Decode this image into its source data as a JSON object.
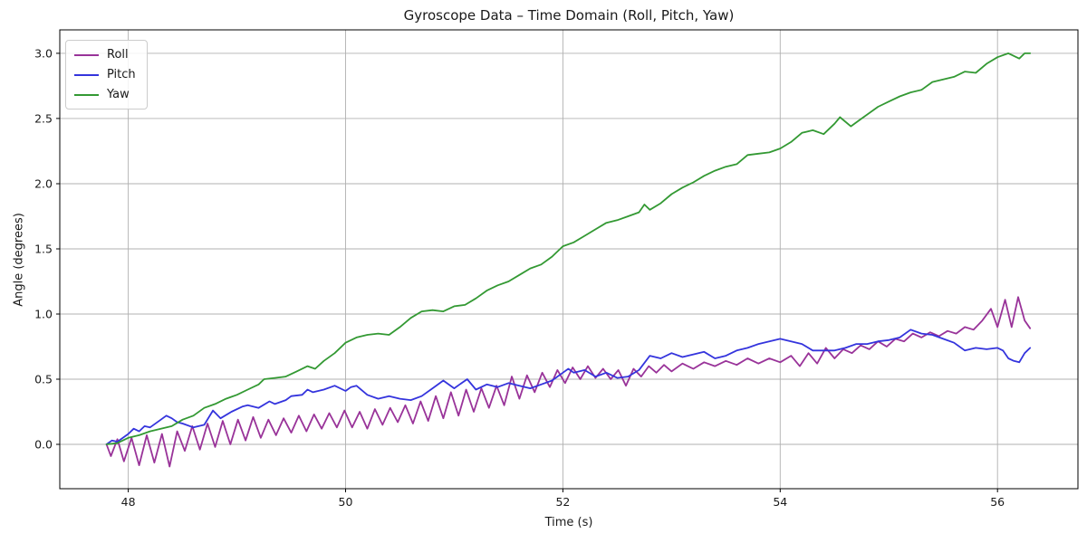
{
  "figure": {
    "title": "Gyroscope Data – Time Domain (Roll, Pitch, Yaw)",
    "xlabel": "Time (s)",
    "ylabel": "Angle (degrees)",
    "background_color": "#ffffff",
    "grid_color": "#b0b0b0",
    "spine_color": "#000000",
    "text_color": "#1a1a1a"
  },
  "legend": {
    "position": "upper-left",
    "items": [
      {
        "label": "Roll",
        "color": "#993399"
      },
      {
        "label": "Pitch",
        "color": "#3434dd"
      },
      {
        "label": "Yaw",
        "color": "#339933"
      }
    ]
  },
  "chart_data": {
    "type": "line",
    "title": "Gyroscope Data – Time Domain (Roll, Pitch, Yaw)",
    "xlabel": "Time (s)",
    "ylabel": "Angle (degrees)",
    "grid": true,
    "legend_position": "upper-left",
    "xlim": [
      47.37,
      56.74
    ],
    "ylim": [
      -0.34,
      3.18
    ],
    "xticks": [
      48,
      50,
      52,
      54,
      56
    ],
    "xtick_labels": [
      "48",
      "50",
      "52",
      "54",
      "56"
    ],
    "yticks": [
      0.0,
      0.5,
      1.0,
      1.5,
      2.0,
      2.5,
      3.0
    ],
    "ytick_labels": [
      "0.0",
      "0.5",
      "1.0",
      "1.5",
      "2.0",
      "2.5",
      "3.0"
    ],
    "series": [
      {
        "name": "Roll",
        "color": "#993399",
        "points": [
          [
            47.8,
            0.0
          ],
          [
            47.84,
            -0.09
          ],
          [
            47.9,
            0.04
          ],
          [
            47.96,
            -0.13
          ],
          [
            48.03,
            0.05
          ],
          [
            48.1,
            -0.16
          ],
          [
            48.17,
            0.07
          ],
          [
            48.24,
            -0.14
          ],
          [
            48.31,
            0.08
          ],
          [
            48.38,
            -0.17
          ],
          [
            48.45,
            0.1
          ],
          [
            48.52,
            -0.05
          ],
          [
            48.59,
            0.14
          ],
          [
            48.66,
            -0.04
          ],
          [
            48.73,
            0.16
          ],
          [
            48.8,
            -0.02
          ],
          [
            48.87,
            0.18
          ],
          [
            48.94,
            0.0
          ],
          [
            49.01,
            0.19
          ],
          [
            49.08,
            0.03
          ],
          [
            49.15,
            0.21
          ],
          [
            49.22,
            0.05
          ],
          [
            49.29,
            0.19
          ],
          [
            49.36,
            0.07
          ],
          [
            49.43,
            0.2
          ],
          [
            49.5,
            0.09
          ],
          [
            49.57,
            0.22
          ],
          [
            49.64,
            0.1
          ],
          [
            49.71,
            0.23
          ],
          [
            49.78,
            0.12
          ],
          [
            49.85,
            0.24
          ],
          [
            49.92,
            0.13
          ],
          [
            49.99,
            0.26
          ],
          [
            50.06,
            0.13
          ],
          [
            50.13,
            0.25
          ],
          [
            50.2,
            0.12
          ],
          [
            50.27,
            0.27
          ],
          [
            50.34,
            0.15
          ],
          [
            50.41,
            0.28
          ],
          [
            50.48,
            0.17
          ],
          [
            50.55,
            0.3
          ],
          [
            50.62,
            0.16
          ],
          [
            50.69,
            0.33
          ],
          [
            50.76,
            0.18
          ],
          [
            50.83,
            0.37
          ],
          [
            50.9,
            0.2
          ],
          [
            50.97,
            0.4
          ],
          [
            51.04,
            0.22
          ],
          [
            51.11,
            0.42
          ],
          [
            51.18,
            0.25
          ],
          [
            51.25,
            0.43
          ],
          [
            51.32,
            0.28
          ],
          [
            51.39,
            0.45
          ],
          [
            51.46,
            0.3
          ],
          [
            51.53,
            0.52
          ],
          [
            51.6,
            0.35
          ],
          [
            51.67,
            0.53
          ],
          [
            51.74,
            0.4
          ],
          [
            51.81,
            0.55
          ],
          [
            51.88,
            0.44
          ],
          [
            51.95,
            0.57
          ],
          [
            52.02,
            0.47
          ],
          [
            52.09,
            0.59
          ],
          [
            52.16,
            0.5
          ],
          [
            52.23,
            0.6
          ],
          [
            52.3,
            0.51
          ],
          [
            52.37,
            0.58
          ],
          [
            52.44,
            0.5
          ],
          [
            52.51,
            0.57
          ],
          [
            52.58,
            0.45
          ],
          [
            52.65,
            0.58
          ],
          [
            52.72,
            0.52
          ],
          [
            52.79,
            0.6
          ],
          [
            52.86,
            0.55
          ],
          [
            52.93,
            0.61
          ],
          [
            53.0,
            0.56
          ],
          [
            53.1,
            0.62
          ],
          [
            53.2,
            0.58
          ],
          [
            53.3,
            0.63
          ],
          [
            53.4,
            0.6
          ],
          [
            53.5,
            0.64
          ],
          [
            53.6,
            0.61
          ],
          [
            53.7,
            0.66
          ],
          [
            53.8,
            0.62
          ],
          [
            53.9,
            0.66
          ],
          [
            54.0,
            0.63
          ],
          [
            54.1,
            0.68
          ],
          [
            54.18,
            0.6
          ],
          [
            54.26,
            0.7
          ],
          [
            54.34,
            0.62
          ],
          [
            54.42,
            0.74
          ],
          [
            54.5,
            0.66
          ],
          [
            54.58,
            0.73
          ],
          [
            54.66,
            0.7
          ],
          [
            54.74,
            0.76
          ],
          [
            54.82,
            0.73
          ],
          [
            54.9,
            0.79
          ],
          [
            54.98,
            0.75
          ],
          [
            55.06,
            0.81
          ],
          [
            55.14,
            0.79
          ],
          [
            55.22,
            0.85
          ],
          [
            55.3,
            0.82
          ],
          [
            55.38,
            0.86
          ],
          [
            55.46,
            0.83
          ],
          [
            55.54,
            0.87
          ],
          [
            55.62,
            0.85
          ],
          [
            55.7,
            0.9
          ],
          [
            55.78,
            0.88
          ],
          [
            55.86,
            0.95
          ],
          [
            55.94,
            1.04
          ],
          [
            56.0,
            0.9
          ],
          [
            56.07,
            1.11
          ],
          [
            56.13,
            0.9
          ],
          [
            56.19,
            1.13
          ],
          [
            56.25,
            0.95
          ],
          [
            56.3,
            0.89
          ]
        ]
      },
      {
        "name": "Pitch",
        "color": "#3434dd",
        "points": [
          [
            47.8,
            0.0
          ],
          [
            47.85,
            0.03
          ],
          [
            47.9,
            0.02
          ],
          [
            48.0,
            0.08
          ],
          [
            48.05,
            0.12
          ],
          [
            48.1,
            0.1
          ],
          [
            48.15,
            0.14
          ],
          [
            48.2,
            0.13
          ],
          [
            48.3,
            0.19
          ],
          [
            48.35,
            0.22
          ],
          [
            48.4,
            0.2
          ],
          [
            48.45,
            0.17
          ],
          [
            48.5,
            0.16
          ],
          [
            48.6,
            0.13
          ],
          [
            48.7,
            0.15
          ],
          [
            48.78,
            0.26
          ],
          [
            48.85,
            0.2
          ],
          [
            48.95,
            0.25
          ],
          [
            49.05,
            0.29
          ],
          [
            49.1,
            0.3
          ],
          [
            49.2,
            0.28
          ],
          [
            49.3,
            0.33
          ],
          [
            49.35,
            0.31
          ],
          [
            49.45,
            0.34
          ],
          [
            49.5,
            0.37
          ],
          [
            49.6,
            0.38
          ],
          [
            49.65,
            0.42
          ],
          [
            49.7,
            0.4
          ],
          [
            49.8,
            0.42
          ],
          [
            49.9,
            0.45
          ],
          [
            50.0,
            0.41
          ],
          [
            50.05,
            0.44
          ],
          [
            50.1,
            0.45
          ],
          [
            50.2,
            0.38
          ],
          [
            50.3,
            0.35
          ],
          [
            50.4,
            0.37
          ],
          [
            50.5,
            0.35
          ],
          [
            50.6,
            0.34
          ],
          [
            50.7,
            0.37
          ],
          [
            50.8,
            0.43
          ],
          [
            50.9,
            0.49
          ],
          [
            51.0,
            0.43
          ],
          [
            51.05,
            0.46
          ],
          [
            51.12,
            0.5
          ],
          [
            51.2,
            0.42
          ],
          [
            51.3,
            0.46
          ],
          [
            51.4,
            0.44
          ],
          [
            51.5,
            0.47
          ],
          [
            51.6,
            0.45
          ],
          [
            51.7,
            0.43
          ],
          [
            51.8,
            0.46
          ],
          [
            51.9,
            0.49
          ],
          [
            52.0,
            0.55
          ],
          [
            52.05,
            0.58
          ],
          [
            52.1,
            0.55
          ],
          [
            52.2,
            0.57
          ],
          [
            52.3,
            0.52
          ],
          [
            52.4,
            0.55
          ],
          [
            52.5,
            0.51
          ],
          [
            52.6,
            0.52
          ],
          [
            52.7,
            0.57
          ],
          [
            52.8,
            0.68
          ],
          [
            52.9,
            0.66
          ],
          [
            53.0,
            0.7
          ],
          [
            53.1,
            0.67
          ],
          [
            53.2,
            0.69
          ],
          [
            53.3,
            0.71
          ],
          [
            53.4,
            0.66
          ],
          [
            53.5,
            0.68
          ],
          [
            53.6,
            0.72
          ],
          [
            53.7,
            0.74
          ],
          [
            53.8,
            0.77
          ],
          [
            53.9,
            0.79
          ],
          [
            54.0,
            0.81
          ],
          [
            54.1,
            0.79
          ],
          [
            54.2,
            0.77
          ],
          [
            54.3,
            0.72
          ],
          [
            54.4,
            0.72
          ],
          [
            54.5,
            0.72
          ],
          [
            54.6,
            0.74
          ],
          [
            54.7,
            0.77
          ],
          [
            54.8,
            0.77
          ],
          [
            54.9,
            0.79
          ],
          [
            55.0,
            0.8
          ],
          [
            55.1,
            0.82
          ],
          [
            55.2,
            0.88
          ],
          [
            55.3,
            0.85
          ],
          [
            55.4,
            0.84
          ],
          [
            55.5,
            0.81
          ],
          [
            55.6,
            0.78
          ],
          [
            55.7,
            0.72
          ],
          [
            55.8,
            0.74
          ],
          [
            55.9,
            0.73
          ],
          [
            56.0,
            0.74
          ],
          [
            56.05,
            0.72
          ],
          [
            56.1,
            0.66
          ],
          [
            56.15,
            0.64
          ],
          [
            56.2,
            0.63
          ],
          [
            56.25,
            0.7
          ],
          [
            56.3,
            0.74
          ]
        ]
      },
      {
        "name": "Yaw",
        "color": "#339933",
        "points": [
          [
            47.8,
            0.0
          ],
          [
            47.9,
            0.01
          ],
          [
            48.0,
            0.05
          ],
          [
            48.1,
            0.07
          ],
          [
            48.2,
            0.1
          ],
          [
            48.3,
            0.12
          ],
          [
            48.4,
            0.14
          ],
          [
            48.5,
            0.19
          ],
          [
            48.6,
            0.22
          ],
          [
            48.7,
            0.28
          ],
          [
            48.8,
            0.31
          ],
          [
            48.9,
            0.35
          ],
          [
            49.0,
            0.38
          ],
          [
            49.1,
            0.42
          ],
          [
            49.2,
            0.46
          ],
          [
            49.25,
            0.5
          ],
          [
            49.35,
            0.51
          ],
          [
            49.45,
            0.52
          ],
          [
            49.55,
            0.56
          ],
          [
            49.65,
            0.6
          ],
          [
            49.72,
            0.58
          ],
          [
            49.8,
            0.64
          ],
          [
            49.9,
            0.7
          ],
          [
            50.0,
            0.78
          ],
          [
            50.1,
            0.82
          ],
          [
            50.2,
            0.84
          ],
          [
            50.3,
            0.85
          ],
          [
            50.4,
            0.84
          ],
          [
            50.5,
            0.9
          ],
          [
            50.6,
            0.97
          ],
          [
            50.7,
            1.02
          ],
          [
            50.8,
            1.03
          ],
          [
            50.9,
            1.02
          ],
          [
            51.0,
            1.06
          ],
          [
            51.1,
            1.07
          ],
          [
            51.2,
            1.12
          ],
          [
            51.3,
            1.18
          ],
          [
            51.4,
            1.22
          ],
          [
            51.5,
            1.25
          ],
          [
            51.6,
            1.3
          ],
          [
            51.7,
            1.35
          ],
          [
            51.8,
            1.38
          ],
          [
            51.9,
            1.44
          ],
          [
            52.0,
            1.52
          ],
          [
            52.1,
            1.55
          ],
          [
            52.2,
            1.6
          ],
          [
            52.3,
            1.65
          ],
          [
            52.4,
            1.7
          ],
          [
            52.5,
            1.72
          ],
          [
            52.6,
            1.75
          ],
          [
            52.7,
            1.78
          ],
          [
            52.75,
            1.84
          ],
          [
            52.8,
            1.8
          ],
          [
            52.9,
            1.85
          ],
          [
            53.0,
            1.92
          ],
          [
            53.1,
            1.97
          ],
          [
            53.2,
            2.01
          ],
          [
            53.3,
            2.06
          ],
          [
            53.4,
            2.1
          ],
          [
            53.5,
            2.13
          ],
          [
            53.6,
            2.15
          ],
          [
            53.7,
            2.22
          ],
          [
            53.8,
            2.23
          ],
          [
            53.9,
            2.24
          ],
          [
            54.0,
            2.27
          ],
          [
            54.1,
            2.32
          ],
          [
            54.2,
            2.39
          ],
          [
            54.3,
            2.41
          ],
          [
            54.4,
            2.38
          ],
          [
            54.5,
            2.46
          ],
          [
            54.55,
            2.51
          ],
          [
            54.65,
            2.44
          ],
          [
            54.75,
            2.5
          ],
          [
            54.9,
            2.59
          ],
          [
            55.0,
            2.63
          ],
          [
            55.1,
            2.67
          ],
          [
            55.2,
            2.7
          ],
          [
            55.3,
            2.72
          ],
          [
            55.4,
            2.78
          ],
          [
            55.5,
            2.8
          ],
          [
            55.6,
            2.82
          ],
          [
            55.7,
            2.86
          ],
          [
            55.8,
            2.85
          ],
          [
            55.9,
            2.92
          ],
          [
            56.0,
            2.97
          ],
          [
            56.1,
            3.0
          ],
          [
            56.15,
            2.98
          ],
          [
            56.2,
            2.96
          ],
          [
            56.25,
            3.0
          ],
          [
            56.3,
            3.0
          ]
        ]
      }
    ]
  }
}
